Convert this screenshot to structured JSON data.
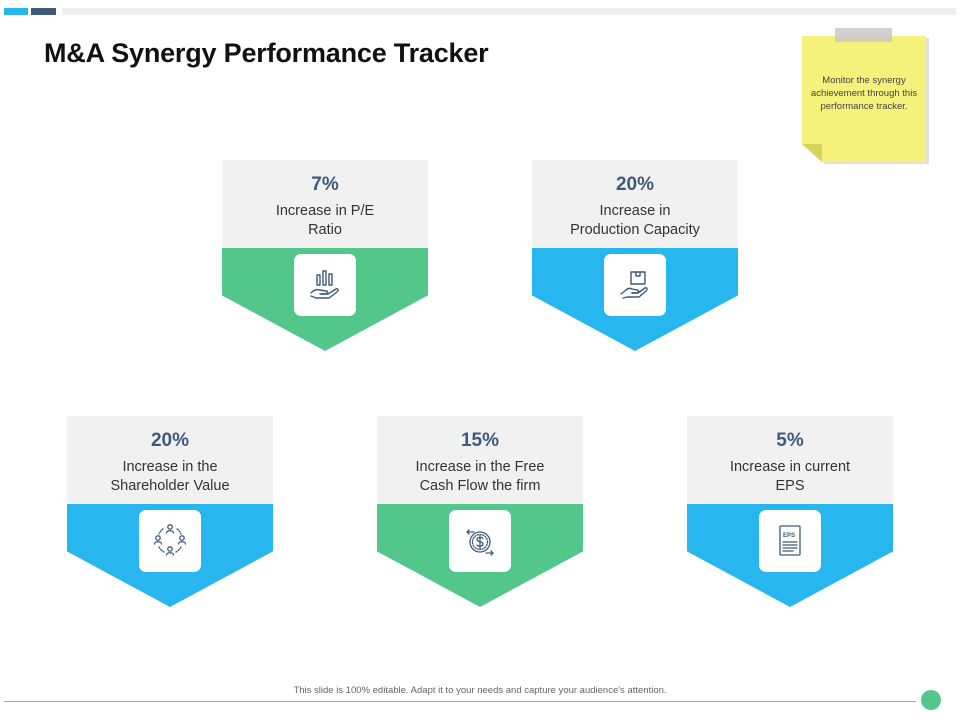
{
  "title": "M&A Synergy Performance Tracker",
  "note": "Monitor the synergy achievement through this performance tracker.",
  "footer": "This slide is 100% editable. Adapt it to your needs and capture your audience's attention.",
  "colors": {
    "green": "#52c68b",
    "blue": "#27b6ed",
    "navy": "#3d5a7a",
    "card_bg": "#f1f1f1",
    "sticky": "#f5f17a",
    "top_bar_blue": "#27b6ed",
    "top_bar_navy": "#3d5a7a",
    "top_bar_grey": "#eeeeee"
  },
  "cards": [
    {
      "pct": "7%",
      "label_line1": "Increase in P/E",
      "label_line2": "Ratio",
      "color": "green",
      "icon": "hand-bar-chart-icon"
    },
    {
      "pct": "20%",
      "label_line1": "Increase in",
      "label_line2": "Production Capacity",
      "color": "blue",
      "icon": "hand-box-icon"
    },
    {
      "pct": "20%",
      "label_line1": "Increase in the",
      "label_line2": "Shareholder Value",
      "color": "blue",
      "icon": "people-cycle-icon"
    },
    {
      "pct": "15%",
      "label_line1": "Increase in the Free",
      "label_line2": "Cash Flow the firm",
      "color": "green",
      "icon": "dollar-cycle-icon"
    },
    {
      "pct": "5%",
      "label_line1": "Increase in current",
      "label_line2": "EPS",
      "color": "blue",
      "icon": "eps-document-icon"
    }
  ],
  "eps_icon_text": "EPS"
}
